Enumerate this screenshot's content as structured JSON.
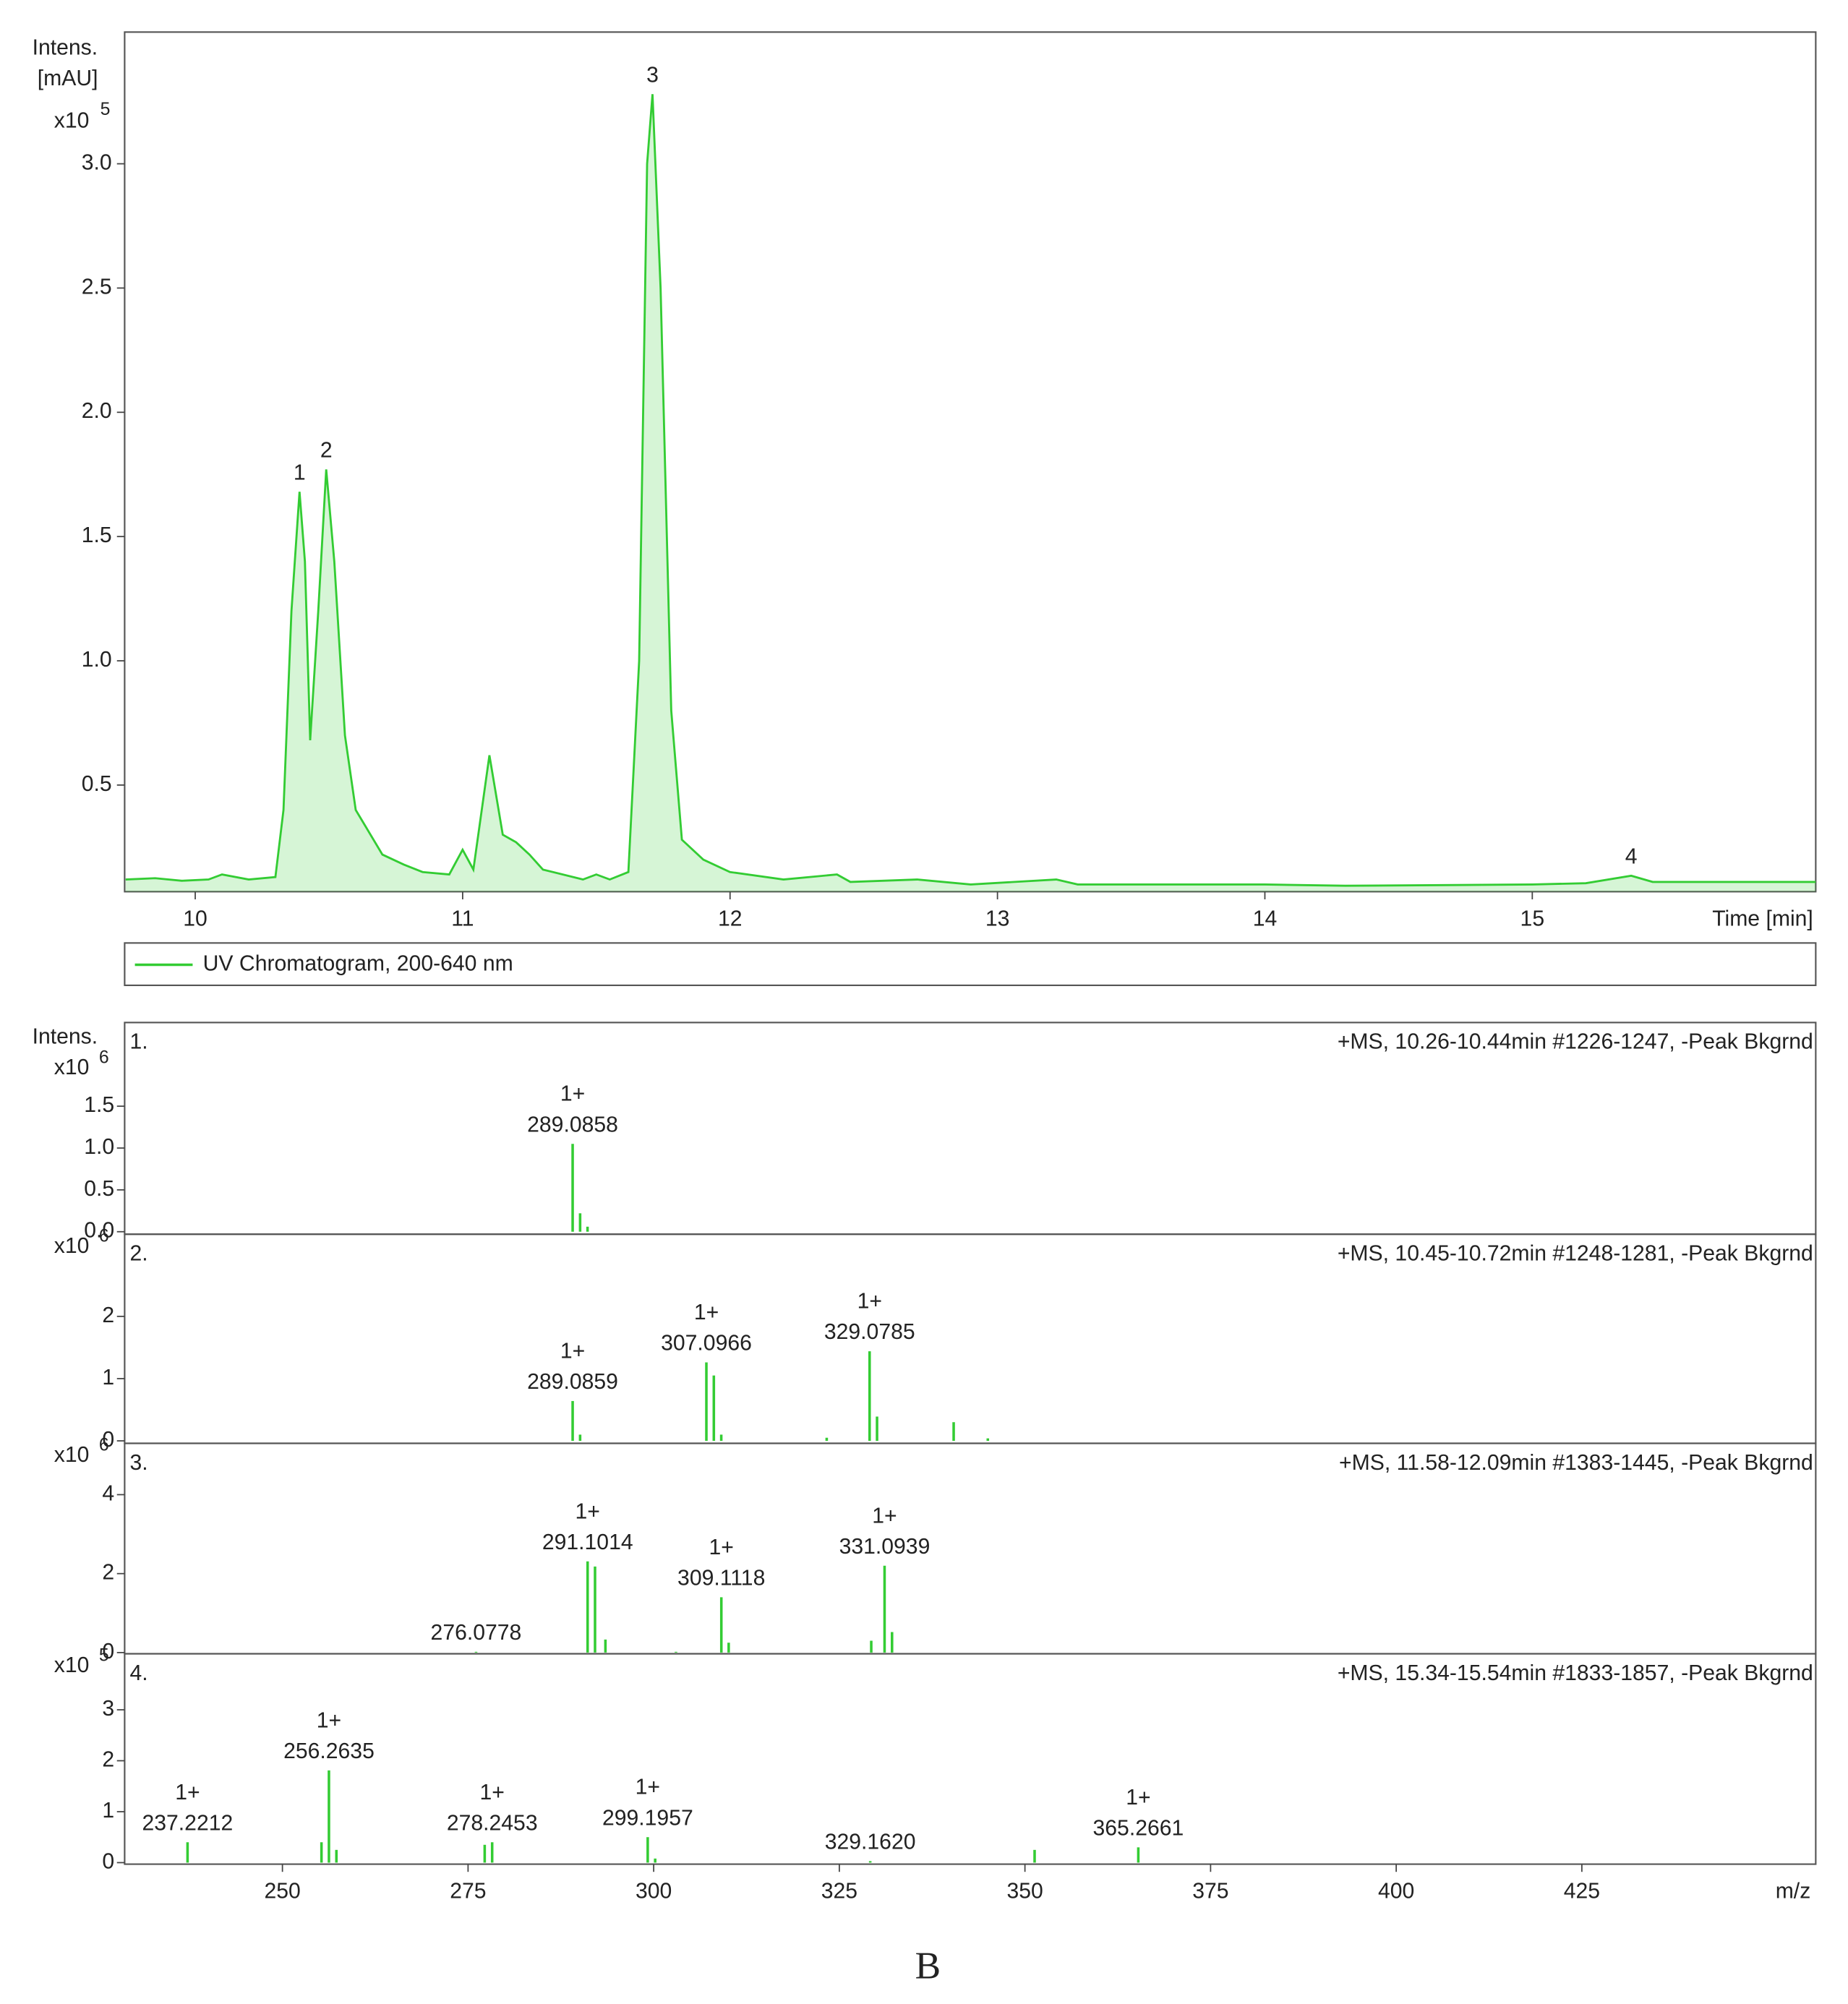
{
  "chart_data": [
    {
      "type": "line",
      "ylabel": [
        "Intens.",
        "[mAU]"
      ],
      "y_scale": "x10",
      "y_scale_exponent": "5",
      "xlabel": "Time [min]",
      "xlim": [
        9.736,
        16.06
      ],
      "ylim": [
        0.071,
        3.53
      ],
      "xticks": [
        10,
        11,
        12,
        13,
        14,
        15
      ],
      "yticks": [
        0.5,
        {
          "value": 1,
          "label": "1.0"
        },
        1.5,
        {
          "value": 2,
          "label": "2.0"
        },
        2.5,
        {
          "value": 3,
          "label": "3.0"
        }
      ],
      "x": [
        9.74,
        9.85,
        9.95,
        10.05,
        10.1,
        10.2,
        10.3,
        10.33,
        10.36,
        10.39,
        10.41,
        10.43,
        10.46,
        10.49,
        10.52,
        10.56,
        10.6,
        10.7,
        10.78,
        10.85,
        10.95,
        11.0,
        11.04,
        11.1,
        11.15,
        11.2,
        11.25,
        11.3,
        11.45,
        11.5,
        11.55,
        11.62,
        11.66,
        11.69,
        11.71,
        11.74,
        11.78,
        11.82,
        11.9,
        12.0,
        12.2,
        12.4,
        12.45,
        12.7,
        12.9,
        13.22,
        13.3,
        14.0,
        14.3,
        15.0,
        15.2,
        15.37,
        15.45,
        16.06
      ],
      "series": [
        {
          "name": "UV Chromatogram, 200-640 nm",
          "color": "#33cc33",
          "values": [
            0.12,
            0.125,
            0.115,
            0.12,
            0.14,
            0.12,
            0.13,
            0.4,
            1.2,
            1.68,
            1.4,
            0.68,
            1.2,
            1.77,
            1.4,
            0.7,
            0.4,
            0.22,
            0.18,
            0.15,
            0.14,
            0.24,
            0.16,
            0.62,
            0.3,
            0.27,
            0.22,
            0.16,
            0.12,
            0.14,
            0.12,
            0.15,
            1.0,
            3.0,
            3.28,
            2.5,
            0.8,
            0.28,
            0.2,
            0.15,
            0.12,
            0.14,
            0.11,
            0.12,
            0.1,
            0.12,
            0.1,
            0.1,
            0.095,
            0.1,
            0.105,
            0.135,
            0.11,
            0.11
          ]
        }
      ],
      "annotations": [
        {
          "text": "1",
          "x": 10.39,
          "y": 1.68
        },
        {
          "text": "2",
          "x": 10.49,
          "y": 1.77
        },
        {
          "text": "3",
          "x": 11.71,
          "y": 3.28
        },
        {
          "text": "4",
          "x": 15.37,
          "y": 0.135
        }
      ]
    },
    {
      "type": "stick",
      "ylabel": "Intens.",
      "xlabel": "m/z",
      "color": "#33cc33",
      "xlim": [
        228.75,
        456.5
      ],
      "xticks": [
        250,
        275,
        300,
        325,
        350,
        375,
        400,
        425
      ],
      "panels": [
        {
          "label": "1.",
          "title": "+MS, 10.26-10.44min #1226-1247, -Peak Bkgrnd",
          "y_scale": "x10",
          "y_scale_exponent": "6",
          "ylim": [
            -0.03,
            2.5
          ],
          "yticks": [
            {
              "value": 0,
              "label": "0.0"
            },
            0.5,
            {
              "value": 1,
              "label": "1.0"
            },
            1.5
          ],
          "x": [
            289.0858,
            290.09,
            291.09
          ],
          "values": [
            1.05,
            0.22,
            0.06
          ],
          "annotations": [
            {
              "x": 289.0858,
              "charge": "1+",
              "label": "289.0858"
            }
          ]
        },
        {
          "label": "2.",
          "title": "+MS, 10.45-10.72min #1248-1281, -Peak Bkgrnd",
          "y_scale": "x10",
          "y_scale_exponent": "6",
          "ylim": [
            -0.04,
            3.32
          ],
          "yticks": [
            0,
            1,
            2
          ],
          "x": [
            289.0859,
            290.09,
            307.0966,
            308.1,
            309.1,
            323.3,
            329.0785,
            330.08,
            340.4,
            345.0
          ],
          "values": [
            0.64,
            0.1,
            1.26,
            1.05,
            0.1,
            0.05,
            1.44,
            0.39,
            0.3,
            0.04
          ],
          "annotations": [
            {
              "x": 289.0859,
              "charge": "1+",
              "label": "289.0859"
            },
            {
              "x": 307.0966,
              "charge": "1+",
              "label": "307.0966"
            },
            {
              "x": 329.0785,
              "charge": "1+",
              "label": "329.0785"
            }
          ]
        },
        {
          "label": "3.",
          "title": "+MS, 11.58-12.09min #1383-1445, -Peak Bkgrnd",
          "y_scale": "x10",
          "y_scale_exponent": "6",
          "ylim": [
            -0.03,
            5.3
          ],
          "yticks": [
            0,
            2,
            4
          ],
          "x": [
            276.0778,
            291.1014,
            292.1,
            293.5,
            303.0,
            309.1118,
            310.1,
            329.3,
            331.0939,
            332.1
          ],
          "values": [
            0.02,
            2.31,
            2.18,
            0.33,
            0.02,
            1.4,
            0.25,
            0.3,
            2.2,
            0.52
          ],
          "annotations": [
            {
              "x": 276.0778,
              "label": "276.0778"
            },
            {
              "x": 291.1014,
              "charge": "1+",
              "label": "291.1014"
            },
            {
              "x": 309.1118,
              "charge": "1+",
              "label": "309.1118"
            },
            {
              "x": 331.0939,
              "charge": "1+",
              "label": "331.0939"
            }
          ]
        },
        {
          "label": "4.",
          "title": "+MS, 15.34-15.54min #1833-1857, -Peak Bkgrnd",
          "y_scale": "x10",
          "y_scale_exponent": "5",
          "ylim": [
            -0.03,
            4.1
          ],
          "yticks": [
            0,
            1,
            2,
            3
          ],
          "x": [
            237.2212,
            255.26,
            256.2635,
            257.27,
            277.24,
            278.2453,
            299.1957,
            300.2,
            329.162,
            351.3,
            365.2661
          ],
          "values": [
            0.4,
            0.4,
            1.81,
            0.25,
            0.35,
            0.4,
            0.5,
            0.08,
            0.03,
            0.25,
            0.3
          ],
          "annotations": [
            {
              "x": 237.2212,
              "charge": "1+",
              "label": "237.2212"
            },
            {
              "x": 256.2635,
              "charge": "1+",
              "label": "256.2635"
            },
            {
              "x": 278.2453,
              "charge": "1+",
              "label": "278.2453"
            },
            {
              "x": 299.1957,
              "charge": "1+",
              "label": "299.1957"
            },
            {
              "x": 329.162,
              "label": "329.1620"
            },
            {
              "x": 365.2661,
              "charge": "1+",
              "label": "365.2661"
            }
          ]
        }
      ]
    }
  ],
  "caption": "B"
}
